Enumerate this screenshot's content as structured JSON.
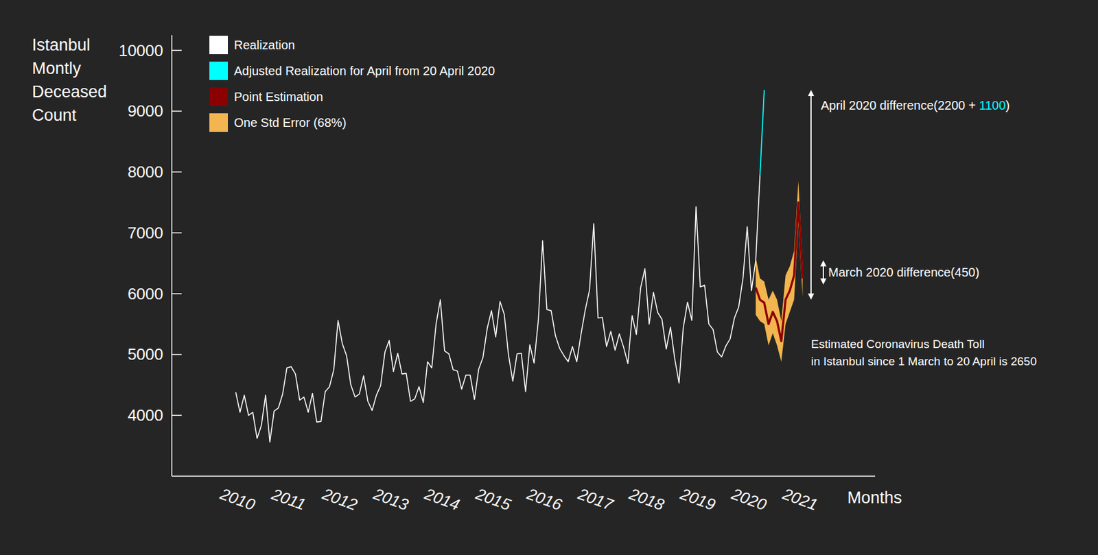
{
  "chart_data": {
    "type": "line",
    "y_label": [
      "Istanbul",
      "Montly",
      "Deceased",
      "Count"
    ],
    "x_label": "Months",
    "legend": "upper left",
    "grid": false,
    "xlim": [
      2008.75,
      2022.5
    ],
    "ylim": [
      3000,
      10250
    ],
    "xticks": [
      2010,
      2011,
      2012,
      2013,
      2014,
      2015,
      2016,
      2017,
      2018,
      2019,
      2020,
      2021
    ],
    "yticks": [
      4000,
      5000,
      6000,
      7000,
      8000,
      9000,
      10000
    ],
    "x": [
      2010,
      2010.083,
      2010.167,
      2010.25,
      2010.333,
      2010.417,
      2010.5,
      2010.583,
      2010.667,
      2010.75,
      2010.833,
      2010.917,
      2011,
      2011.083,
      2011.167,
      2011.25,
      2011.333,
      2011.417,
      2011.5,
      2011.583,
      2011.667,
      2011.75,
      2011.833,
      2011.917,
      2012,
      2012.083,
      2012.167,
      2012.25,
      2012.333,
      2012.417,
      2012.5,
      2012.583,
      2012.667,
      2012.75,
      2012.833,
      2012.917,
      2013,
      2013.083,
      2013.167,
      2013.25,
      2013.333,
      2013.417,
      2013.5,
      2013.583,
      2013.667,
      2013.75,
      2013.833,
      2013.917,
      2014,
      2014.083,
      2014.167,
      2014.25,
      2014.333,
      2014.417,
      2014.5,
      2014.583,
      2014.667,
      2014.75,
      2014.833,
      2014.917,
      2015,
      2015.083,
      2015.167,
      2015.25,
      2015.333,
      2015.417,
      2015.5,
      2015.583,
      2015.667,
      2015.75,
      2015.833,
      2015.917,
      2016,
      2016.083,
      2016.167,
      2016.25,
      2016.333,
      2016.417,
      2016.5,
      2016.583,
      2016.667,
      2016.75,
      2016.833,
      2016.917,
      2017,
      2017.083,
      2017.167,
      2017.25,
      2017.333,
      2017.417,
      2017.5,
      2017.583,
      2017.667,
      2017.75,
      2017.833,
      2017.917,
      2018,
      2018.083,
      2018.167,
      2018.25,
      2018.333,
      2018.417,
      2018.5,
      2018.583,
      2018.667,
      2018.75,
      2018.833,
      2018.917,
      2019,
      2019.083,
      2019.167,
      2019.25,
      2019.333,
      2019.417,
      2019.5,
      2019.583,
      2019.667,
      2019.75,
      2019.833,
      2019.917,
      2020,
      2020.083,
      2020.167,
      2020.25,
      2020.333,
      2020.417,
      2020.5,
      2020.583,
      2020.667,
      2020.75,
      2020.833,
      2020.917,
      2021,
      2021.083
    ],
    "series": [
      {
        "name": "Realization",
        "color": "#ffffff",
        "type": "line",
        "values": [
          4380,
          4050,
          4330,
          4000,
          4050,
          3620,
          3830,
          4330,
          3560,
          4070,
          4120,
          4350,
          4780,
          4800,
          4680,
          4250,
          4300,
          4050,
          4360,
          3890,
          3900,
          4390,
          4470,
          4750,
          5560,
          5180,
          4980,
          4500,
          4300,
          4350,
          4650,
          4230,
          4080,
          4330,
          4490,
          5040,
          5230,
          4720,
          5020,
          4680,
          4690,
          4230,
          4270,
          4470,
          4210,
          4880,
          4780,
          5500,
          5900,
          5060,
          5010,
          4750,
          4730,
          4430,
          4660,
          4660,
          4260,
          4760,
          4950,
          5430,
          5720,
          5290,
          5870,
          5660,
          4990,
          4560,
          5010,
          5020,
          4390,
          5160,
          4860,
          5570,
          6870,
          5740,
          5720,
          5310,
          5100,
          4980,
          4880,
          5130,
          4880,
          5330,
          5730,
          6060,
          7150,
          5600,
          5610,
          5130,
          5380,
          5070,
          5340,
          5120,
          4850,
          5640,
          5330,
          6100,
          6410,
          5500,
          6020,
          5690,
          5580,
          5090,
          5450,
          4930,
          4530,
          5440,
          5860,
          5560,
          7430,
          6110,
          6140,
          5500,
          5410,
          5040,
          4960,
          5140,
          5260,
          5600,
          5780,
          6250,
          7100,
          6050,
          6550,
          7950,
          null,
          null,
          null,
          null,
          null,
          null,
          null,
          null,
          null,
          null
        ]
      },
      {
        "name": "Adjusted Realization for April from 20 April 2020",
        "color": "#00ffff",
        "type": "line",
        "values": [
          null,
          null,
          null,
          null,
          null,
          null,
          null,
          null,
          null,
          null,
          null,
          null,
          null,
          null,
          null,
          null,
          null,
          null,
          null,
          null,
          null,
          null,
          null,
          null,
          null,
          null,
          null,
          null,
          null,
          null,
          null,
          null,
          null,
          null,
          null,
          null,
          null,
          null,
          null,
          null,
          null,
          null,
          null,
          null,
          null,
          null,
          null,
          null,
          null,
          null,
          null,
          null,
          null,
          null,
          null,
          null,
          null,
          null,
          null,
          null,
          null,
          null,
          null,
          null,
          null,
          null,
          null,
          null,
          null,
          null,
          null,
          null,
          null,
          null,
          null,
          null,
          null,
          null,
          null,
          null,
          null,
          null,
          null,
          null,
          null,
          null,
          null,
          null,
          null,
          null,
          null,
          null,
          null,
          null,
          null,
          null,
          null,
          null,
          null,
          null,
          null,
          null,
          null,
          null,
          null,
          null,
          null,
          null,
          null,
          null,
          null,
          null,
          null,
          null,
          null,
          null,
          null,
          null,
          null,
          null,
          null,
          null,
          null,
          7950,
          9350,
          null,
          null,
          null,
          null,
          null,
          null,
          null,
          null,
          null
        ]
      },
      {
        "name": "Point Estimation",
        "color": "#8b0000",
        "type": "line",
        "values": [
          null,
          null,
          null,
          null,
          null,
          null,
          null,
          null,
          null,
          null,
          null,
          null,
          null,
          null,
          null,
          null,
          null,
          null,
          null,
          null,
          null,
          null,
          null,
          null,
          null,
          null,
          null,
          null,
          null,
          null,
          null,
          null,
          null,
          null,
          null,
          null,
          null,
          null,
          null,
          null,
          null,
          null,
          null,
          null,
          null,
          null,
          null,
          null,
          null,
          null,
          null,
          null,
          null,
          null,
          null,
          null,
          null,
          null,
          null,
          null,
          null,
          null,
          null,
          null,
          null,
          null,
          null,
          null,
          null,
          null,
          null,
          null,
          null,
          null,
          null,
          null,
          null,
          null,
          null,
          null,
          null,
          null,
          null,
          null,
          null,
          null,
          null,
          null,
          null,
          null,
          null,
          null,
          null,
          null,
          null,
          null,
          null,
          null,
          null,
          null,
          null,
          null,
          null,
          null,
          null,
          null,
          null,
          null,
          null,
          null,
          null,
          null,
          null,
          null,
          null,
          null,
          null,
          null,
          null,
          null,
          null,
          null,
          6100,
          5900,
          5850,
          5500,
          5700,
          5550,
          5220,
          5900,
          6050,
          6300,
          7500,
          6250
        ]
      },
      {
        "name": "One Std Error (68%)",
        "color": "#f2b54f",
        "type": "band",
        "values": [
          null,
          null,
          null,
          null,
          null,
          null,
          null,
          null,
          null,
          null,
          null,
          null,
          null,
          null,
          null,
          null,
          null,
          null,
          null,
          null,
          null,
          null,
          null,
          null,
          null,
          null,
          null,
          null,
          null,
          null,
          null,
          null,
          null,
          null,
          null,
          null,
          null,
          null,
          null,
          null,
          null,
          null,
          null,
          null,
          null,
          null,
          null,
          null,
          null,
          null,
          null,
          null,
          null,
          null,
          null,
          null,
          null,
          null,
          null,
          null,
          null,
          null,
          null,
          null,
          null,
          null,
          null,
          null,
          null,
          null,
          null,
          null,
          null,
          null,
          null,
          null,
          null,
          null,
          null,
          null,
          null,
          null,
          null,
          null,
          null,
          null,
          null,
          null,
          null,
          null,
          null,
          null,
          null,
          null,
          null,
          null,
          null,
          null,
          null,
          null,
          null,
          null,
          null,
          null,
          null,
          null,
          null,
          null,
          null,
          null,
          null,
          null,
          null,
          null,
          null,
          null,
          null,
          null,
          null,
          null,
          null,
          null,
          6600,
          6250,
          6200,
          5900,
          6050,
          5900,
          5550,
          6300,
          6450,
          6700,
          7850,
          6500
        ],
        "lower": [
          null,
          null,
          null,
          null,
          null,
          null,
          null,
          null,
          null,
          null,
          null,
          null,
          null,
          null,
          null,
          null,
          null,
          null,
          null,
          null,
          null,
          null,
          null,
          null,
          null,
          null,
          null,
          null,
          null,
          null,
          null,
          null,
          null,
          null,
          null,
          null,
          null,
          null,
          null,
          null,
          null,
          null,
          null,
          null,
          null,
          null,
          null,
          null,
          null,
          null,
          null,
          null,
          null,
          null,
          null,
          null,
          null,
          null,
          null,
          null,
          null,
          null,
          null,
          null,
          null,
          null,
          null,
          null,
          null,
          null,
          null,
          null,
          null,
          null,
          null,
          null,
          null,
          null,
          null,
          null,
          null,
          null,
          null,
          null,
          null,
          null,
          null,
          null,
          null,
          null,
          null,
          null,
          null,
          null,
          null,
          null,
          null,
          null,
          null,
          null,
          null,
          null,
          null,
          null,
          null,
          null,
          null,
          null,
          null,
          null,
          null,
          null,
          null,
          null,
          null,
          null,
          null,
          null,
          null,
          null,
          null,
          null,
          5650,
          5550,
          5500,
          5150,
          5350,
          5150,
          4880,
          5500,
          5700,
          5900,
          7150,
          5950
        ]
      }
    ],
    "annotations": [
      {
        "parts": [
          {
            "text": "April 2020 difference(2200 + "
          },
          {
            "text": "1100",
            "color": "#00ffff"
          },
          {
            "text": ")"
          }
        ],
        "y_from": 5900,
        "y_to": 9350
      },
      {
        "parts": [
          {
            "text": "March 2020 difference(450)"
          }
        ],
        "y_from": 6150,
        "y_to": 6550
      },
      {
        "lines": [
          "Estimated Coronavirus Death Toll",
          "in Istanbul since 1 March to 20 April is 2650"
        ]
      }
    ]
  }
}
